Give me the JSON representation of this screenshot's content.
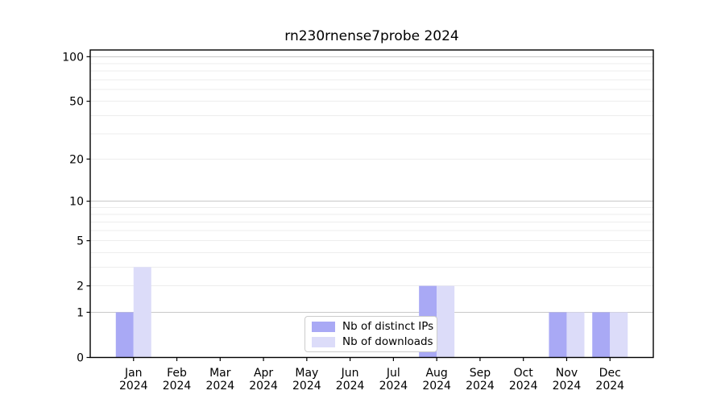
{
  "chart_data": {
    "type": "bar",
    "title": "rn230rnense7probe 2024",
    "categories": [
      "Jan",
      "Feb",
      "Mar",
      "Apr",
      "May",
      "Jun",
      "Jul",
      "Aug",
      "Sep",
      "Oct",
      "Nov",
      "Dec"
    ],
    "year_label": "2024",
    "series": [
      {
        "name": "Nb of distinct IPs",
        "color": "#a9a9f5",
        "values": [
          1,
          0,
          0,
          0,
          0,
          0,
          0,
          2,
          0,
          0,
          1,
          1
        ]
      },
      {
        "name": "Nb of downloads",
        "color": "#dcdcf9",
        "values": [
          3,
          0,
          0,
          0,
          0,
          0,
          0,
          2,
          0,
          0,
          1,
          1
        ]
      }
    ],
    "y_axis": {
      "scale": "log1p",
      "tick_values": [
        0,
        1,
        2,
        5,
        10,
        20,
        50,
        100
      ],
      "major_grid_values": [
        1,
        10,
        100
      ],
      "minor_grid_values": [
        2,
        3,
        4,
        5,
        6,
        7,
        8,
        9,
        20,
        30,
        40,
        50,
        60,
        70,
        80,
        90
      ],
      "ymax": 111
    },
    "legend": {
      "position": "lower center"
    },
    "colors": {
      "major_grid": "#c8c8c8",
      "minor_grid": "#ededed",
      "axis": "#000000",
      "text": "#000000",
      "background": "#ffffff",
      "legend_border": "#cccccc"
    }
  }
}
